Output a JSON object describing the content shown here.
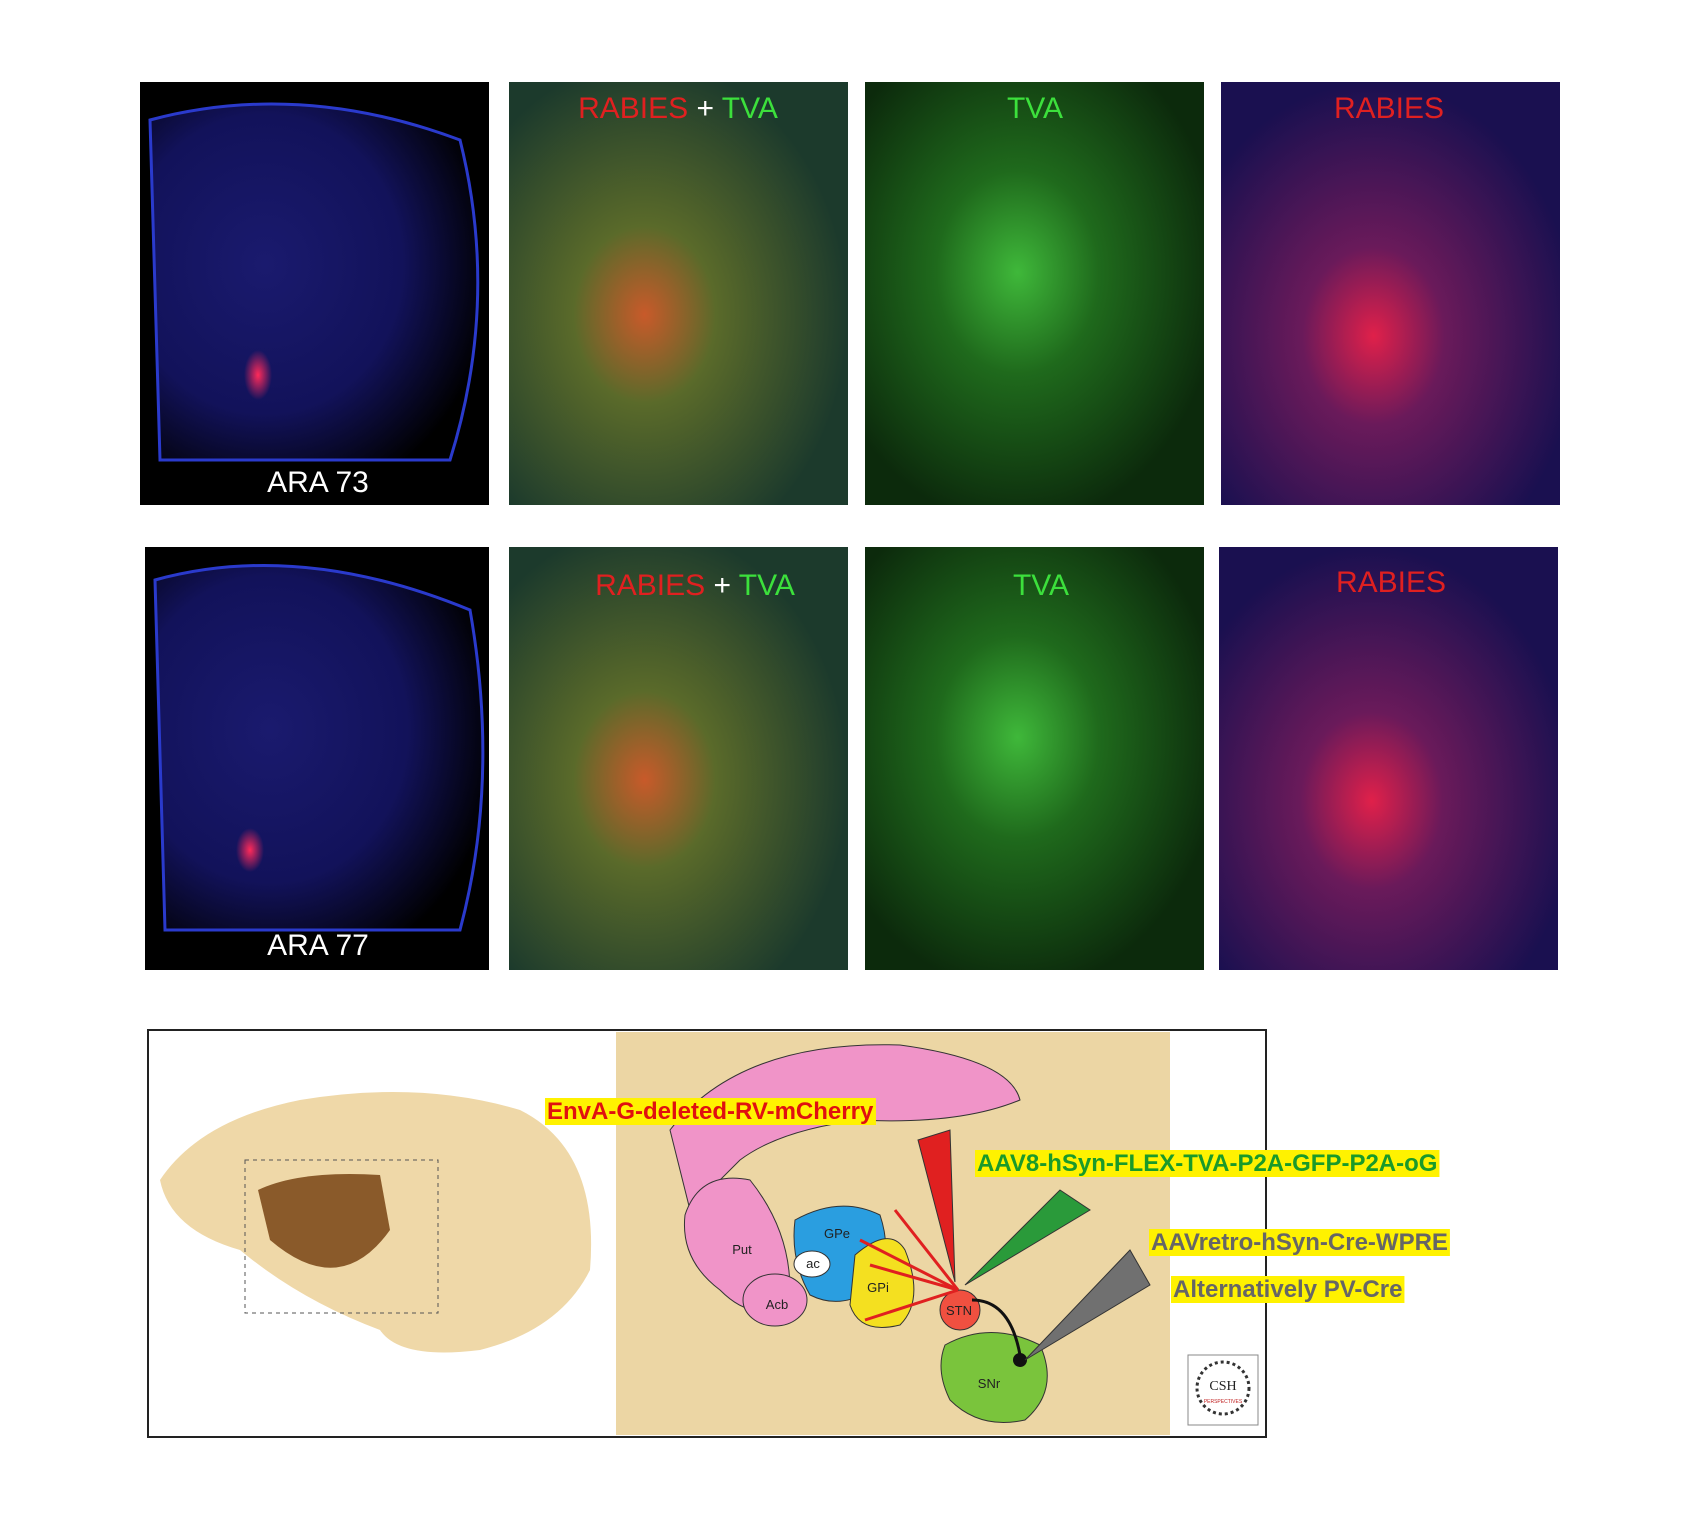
{
  "rows": [
    {
      "atlas": "ARA 73",
      "merge": [
        "RABIES",
        "+",
        "TVA"
      ],
      "green": "TVA",
      "red": "RABIES"
    },
    {
      "atlas": "ARA 77",
      "merge": [
        "RABIES",
        "+",
        "TVA"
      ],
      "green": "TVA",
      "red": "RABIES"
    }
  ],
  "diagram": {
    "regions": {
      "put": "Put",
      "ac": "ac",
      "gpe": "GPe",
      "gpi": "GPi",
      "acb": "Acb",
      "stn": "STN",
      "snr": "SNr"
    },
    "labels": [
      "EnvA-G-deleted-RV-mCherry",
      "AAV8-hSyn-FLEX-TVA-P2A-GFP-P2A-oG",
      "AAVretro-hSyn-Cre-WPRE",
      "Alternatively PV-Cre"
    ],
    "logo": [
      "CSH",
      "PERSPECTIVES"
    ]
  }
}
